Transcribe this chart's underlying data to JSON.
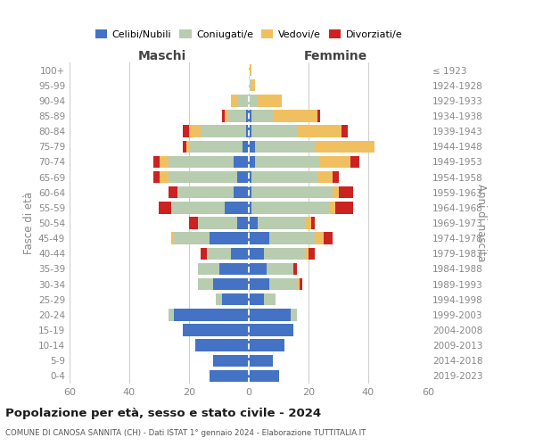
{
  "age_groups": [
    "100+",
    "95-99",
    "90-94",
    "85-89",
    "80-84",
    "75-79",
    "70-74",
    "65-69",
    "60-64",
    "55-59",
    "50-54",
    "45-49",
    "40-44",
    "35-39",
    "30-34",
    "25-29",
    "20-24",
    "15-19",
    "10-14",
    "5-9",
    "0-4"
  ],
  "birth_years": [
    "≤ 1923",
    "1924-1928",
    "1929-1933",
    "1934-1938",
    "1939-1943",
    "1944-1948",
    "1949-1953",
    "1954-1958",
    "1959-1963",
    "1964-1968",
    "1969-1973",
    "1974-1978",
    "1979-1983",
    "1984-1988",
    "1989-1993",
    "1994-1998",
    "1999-2003",
    "2004-2008",
    "2009-2013",
    "2014-2018",
    "2019-2023"
  ],
  "maschi": {
    "celibi": [
      0,
      0,
      0,
      1,
      1,
      2,
      5,
      4,
      5,
      8,
      4,
      13,
      6,
      10,
      12,
      9,
      25,
      22,
      18,
      12,
      13
    ],
    "coniugati": [
      0,
      0,
      4,
      6,
      15,
      18,
      22,
      23,
      19,
      18,
      13,
      12,
      8,
      7,
      5,
      2,
      2,
      0,
      0,
      0,
      0
    ],
    "vedovi": [
      0,
      0,
      2,
      1,
      4,
      1,
      3,
      3,
      0,
      0,
      0,
      1,
      0,
      0,
      0,
      0,
      0,
      0,
      0,
      0,
      0
    ],
    "divorziati": [
      0,
      0,
      0,
      1,
      2,
      1,
      2,
      2,
      3,
      4,
      3,
      0,
      2,
      0,
      0,
      0,
      0,
      0,
      0,
      0,
      0
    ]
  },
  "femmine": {
    "nubili": [
      0,
      0,
      0,
      1,
      1,
      2,
      2,
      1,
      1,
      1,
      3,
      7,
      5,
      6,
      7,
      5,
      14,
      15,
      12,
      8,
      10
    ],
    "coniugate": [
      0,
      1,
      3,
      7,
      15,
      20,
      22,
      22,
      27,
      26,
      16,
      15,
      14,
      9,
      9,
      4,
      2,
      0,
      0,
      0,
      0
    ],
    "vedove": [
      1,
      1,
      8,
      15,
      15,
      20,
      10,
      5,
      2,
      2,
      2,
      3,
      1,
      0,
      1,
      0,
      0,
      0,
      0,
      0,
      0
    ],
    "divorziate": [
      0,
      0,
      0,
      1,
      2,
      0,
      3,
      2,
      5,
      6,
      1,
      3,
      2,
      1,
      1,
      0,
      0,
      0,
      0,
      0,
      0
    ]
  },
  "colors": {
    "celibi": "#4472C4",
    "coniugati": "#B8CCB0",
    "vedovi": "#F0C060",
    "divorziati": "#CC2222"
  },
  "legend_labels": [
    "Celibi/Nubili",
    "Coniugati/e",
    "Vedovi/e",
    "Divorziati/e"
  ],
  "title": "Popolazione per età, sesso e stato civile - 2024",
  "subtitle": "COMUNE DI CANOSA SANNITA (CH) - Dati ISTAT 1° gennaio 2024 - Elaborazione TUTTITALIA.IT",
  "header_left": "Maschi",
  "header_right": "Femmine",
  "ylabel_left": "Fasce di età",
  "ylabel_right": "Anni di nascita",
  "xlim": 60,
  "bg_color": "#ffffff",
  "grid_color": "#cccccc",
  "tick_color": "#888888",
  "label_color": "#444444"
}
